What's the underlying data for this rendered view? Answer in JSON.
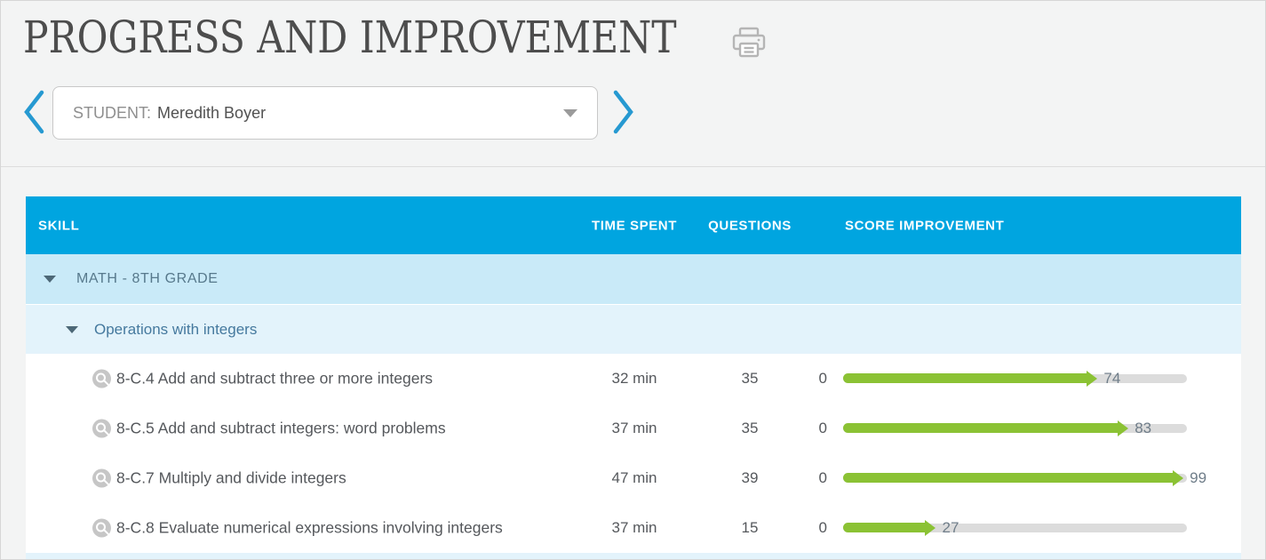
{
  "page": {
    "title": "PROGRESS AND IMPROVEMENT"
  },
  "student_selector": {
    "label": "STUDENT:",
    "name": "Meredith Boyer"
  },
  "table": {
    "header": {
      "skill": "SKILL",
      "time_spent": "TIME SPENT",
      "questions": "QUESTIONS",
      "score_improvement": "SCORE IMPROVEMENT"
    },
    "groups": [
      {
        "label": "MATH - 8TH GRADE"
      },
      {
        "label": "Operations with integers"
      }
    ],
    "rows": [
      {
        "skill": "8-C.4 Add and subtract three or more integers",
        "time_spent": "32 min",
        "questions": "35",
        "score_start": "0",
        "score_end": 74
      },
      {
        "skill": "8-C.5 Add and subtract integers: word problems",
        "time_spent": "37 min",
        "questions": "35",
        "score_start": "0",
        "score_end": 83
      },
      {
        "skill": "8-C.7 Multiply and divide integers",
        "time_spent": "47 min",
        "questions": "39",
        "score_start": "0",
        "score_end": 99
      },
      {
        "skill": "8-C.8 Evaluate numerical expressions involving integers",
        "time_spent": "37 min",
        "questions": "15",
        "score_start": "0",
        "score_end": 27
      }
    ],
    "score_scale": {
      "min": 0,
      "max": 100
    }
  },
  "colors": {
    "header_blue": "#00a5e0",
    "group_row_blue": "#c9eaf8",
    "subgroup_row_blue": "#e3f3fb",
    "bar_green": "#8bc234",
    "bar_track_gray": "#dcdcdc",
    "chevron_blue": "#2699d1",
    "page_background": "#f3f4f4"
  }
}
